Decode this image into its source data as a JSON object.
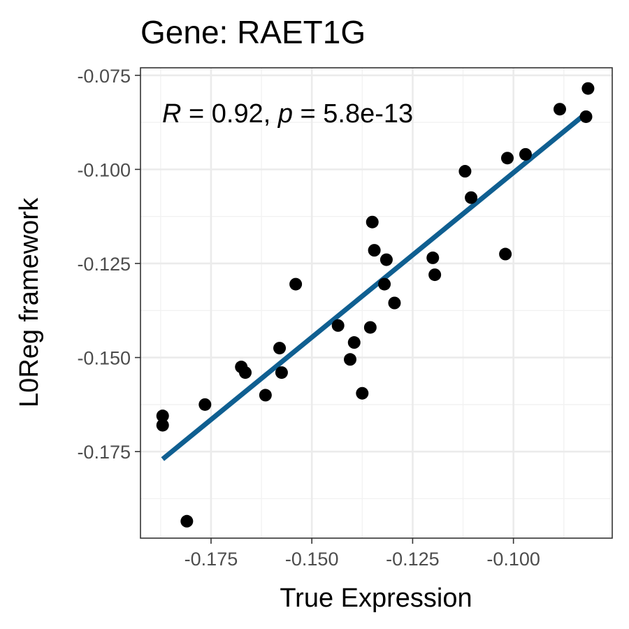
{
  "chart_data": {
    "type": "scatter",
    "title": "Gene: RAET1G",
    "xlabel": "True Expression",
    "ylabel": "L0Reg framework",
    "xlim": [
      -0.1925,
      -0.0755
    ],
    "ylim": [
      -0.198,
      -0.073
    ],
    "x_ticks": [
      -0.175,
      -0.15,
      -0.125,
      -0.1
    ],
    "x_tick_labels": [
      "-0.175",
      "-0.150",
      "-0.125",
      "-0.100"
    ],
    "y_ticks": [
      -0.175,
      -0.15,
      -0.125,
      -0.1,
      -0.075
    ],
    "y_tick_labels": [
      "-0.175",
      "-0.150",
      "-0.125",
      "-0.100",
      "-0.075"
    ],
    "grid": true,
    "point_color": "#000000",
    "fit_line_color": "#0f5f91",
    "annotation": {
      "r_symbol": "R",
      "r_text": " = 0.92, ",
      "p_symbol": "p",
      "p_text": " = 5.8e-13"
    },
    "fit_line": {
      "x": [
        -0.187,
        -0.083
      ],
      "y": [
        -0.177,
        -0.086
      ]
    },
    "points": [
      {
        "x": -0.0815,
        "y": -0.0785
      },
      {
        "x": -0.0885,
        "y": -0.084
      },
      {
        "x": -0.082,
        "y": -0.086
      },
      {
        "x": -0.097,
        "y": -0.096
      },
      {
        "x": -0.1015,
        "y": -0.097
      },
      {
        "x": -0.112,
        "y": -0.1005
      },
      {
        "x": -0.1105,
        "y": -0.1075
      },
      {
        "x": -0.102,
        "y": -0.1225
      },
      {
        "x": -0.135,
        "y": -0.114
      },
      {
        "x": -0.1345,
        "y": -0.1215
      },
      {
        "x": -0.1315,
        "y": -0.124
      },
      {
        "x": -0.12,
        "y": -0.1235
      },
      {
        "x": -0.1195,
        "y": -0.128
      },
      {
        "x": -0.132,
        "y": -0.1305
      },
      {
        "x": -0.1295,
        "y": -0.1355
      },
      {
        "x": -0.154,
        "y": -0.1305
      },
      {
        "x": -0.1435,
        "y": -0.1415
      },
      {
        "x": -0.1355,
        "y": -0.142
      },
      {
        "x": -0.1395,
        "y": -0.146
      },
      {
        "x": -0.1405,
        "y": -0.1505
      },
      {
        "x": -0.1375,
        "y": -0.1595
      },
      {
        "x": -0.158,
        "y": -0.1475
      },
      {
        "x": -0.1575,
        "y": -0.154
      },
      {
        "x": -0.1675,
        "y": -0.1525
      },
      {
        "x": -0.1665,
        "y": -0.154
      },
      {
        "x": -0.1615,
        "y": -0.16
      },
      {
        "x": -0.1765,
        "y": -0.1625
      },
      {
        "x": -0.187,
        "y": -0.1655
      },
      {
        "x": -0.187,
        "y": -0.168
      },
      {
        "x": -0.181,
        "y": -0.1935
      }
    ]
  }
}
